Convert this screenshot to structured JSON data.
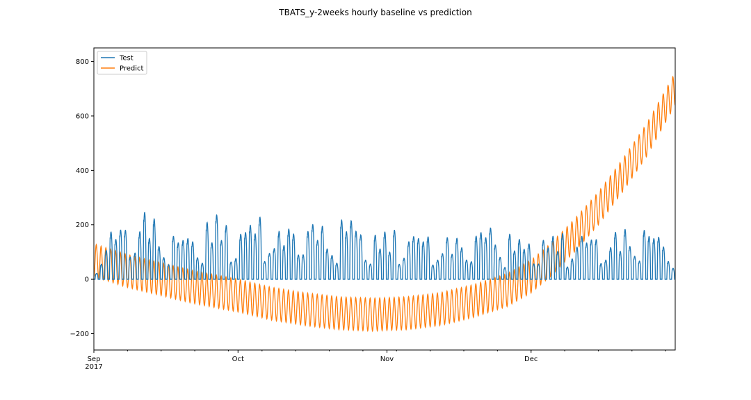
{
  "chart_data": {
    "type": "line",
    "title": "TBATS_y-2weeks hourly baseline vs prediction",
    "xlabel": "",
    "ylabel": "",
    "x_start": "2017-09-01",
    "x_end": "2017-12-31",
    "xlim": [
      "2017-09-01",
      "2017-12-31"
    ],
    "ylim": [
      -260,
      850
    ],
    "x_ticks": [
      {
        "date": "2017-09-01",
        "label": "Sep",
        "sublabel": "2017"
      },
      {
        "date": "2017-10-01",
        "label": "Oct",
        "sublabel": ""
      },
      {
        "date": "2017-11-01",
        "label": "Nov",
        "sublabel": ""
      },
      {
        "date": "2017-12-01",
        "label": "Dec",
        "sublabel": ""
      }
    ],
    "y_ticks": [
      -200,
      0,
      200,
      400,
      600,
      800
    ],
    "grid": false,
    "legend_position": "top-left",
    "series": [
      {
        "name": "Test",
        "color": "#1f77b4",
        "baseline": 0,
        "daily_peaks": [
          {
            "date": "2017-09-01",
            "value": 80
          },
          {
            "date": "2017-09-04",
            "value": 205
          },
          {
            "date": "2017-09-08",
            "value": 250
          },
          {
            "date": "2017-09-12",
            "value": 300
          },
          {
            "date": "2017-09-16",
            "value": 200
          },
          {
            "date": "2017-09-20",
            "value": 190
          },
          {
            "date": "2017-09-24",
            "value": 230
          },
          {
            "date": "2017-09-26",
            "value": 290
          },
          {
            "date": "2017-09-30",
            "value": 210
          },
          {
            "date": "2017-10-06",
            "value": 280
          },
          {
            "date": "2017-10-10",
            "value": 200
          },
          {
            "date": "2017-10-14",
            "value": 270
          },
          {
            "date": "2017-10-20",
            "value": 220
          },
          {
            "date": "2017-10-24",
            "value": 285
          },
          {
            "date": "2017-10-28",
            "value": 190
          },
          {
            "date": "2017-11-03",
            "value": 215
          },
          {
            "date": "2017-11-08",
            "value": 200
          },
          {
            "date": "2017-11-15",
            "value": 175
          },
          {
            "date": "2017-11-22",
            "value": 235
          },
          {
            "date": "2017-11-30",
            "value": 165
          },
          {
            "date": "2017-12-08",
            "value": 200
          },
          {
            "date": "2017-12-16",
            "value": 190
          },
          {
            "date": "2017-12-24",
            "value": 235
          },
          {
            "date": "2017-12-31",
            "value": 160
          }
        ]
      },
      {
        "name": "Predict",
        "color": "#ff7f0e",
        "trend": [
          {
            "date": "2017-09-01",
            "value": 70
          },
          {
            "date": "2017-09-08",
            "value": 30
          },
          {
            "date": "2017-09-15",
            "value": 0
          },
          {
            "date": "2017-09-22",
            "value": -30
          },
          {
            "date": "2017-10-01",
            "value": -60
          },
          {
            "date": "2017-10-08",
            "value": -90
          },
          {
            "date": "2017-10-15",
            "value": -110
          },
          {
            "date": "2017-10-22",
            "value": -125
          },
          {
            "date": "2017-10-29",
            "value": -130
          },
          {
            "date": "2017-11-05",
            "value": -125
          },
          {
            "date": "2017-11-12",
            "value": -110
          },
          {
            "date": "2017-11-19",
            "value": -80
          },
          {
            "date": "2017-11-26",
            "value": -40
          },
          {
            "date": "2017-12-01",
            "value": 10
          },
          {
            "date": "2017-12-05",
            "value": 70
          },
          {
            "date": "2017-12-10",
            "value": 160
          },
          {
            "date": "2017-12-15",
            "value": 260
          },
          {
            "date": "2017-12-20",
            "value": 380
          },
          {
            "date": "2017-12-25",
            "value": 510
          },
          {
            "date": "2017-12-31",
            "value": 700
          }
        ],
        "daily_amplitude": 60
      }
    ]
  }
}
